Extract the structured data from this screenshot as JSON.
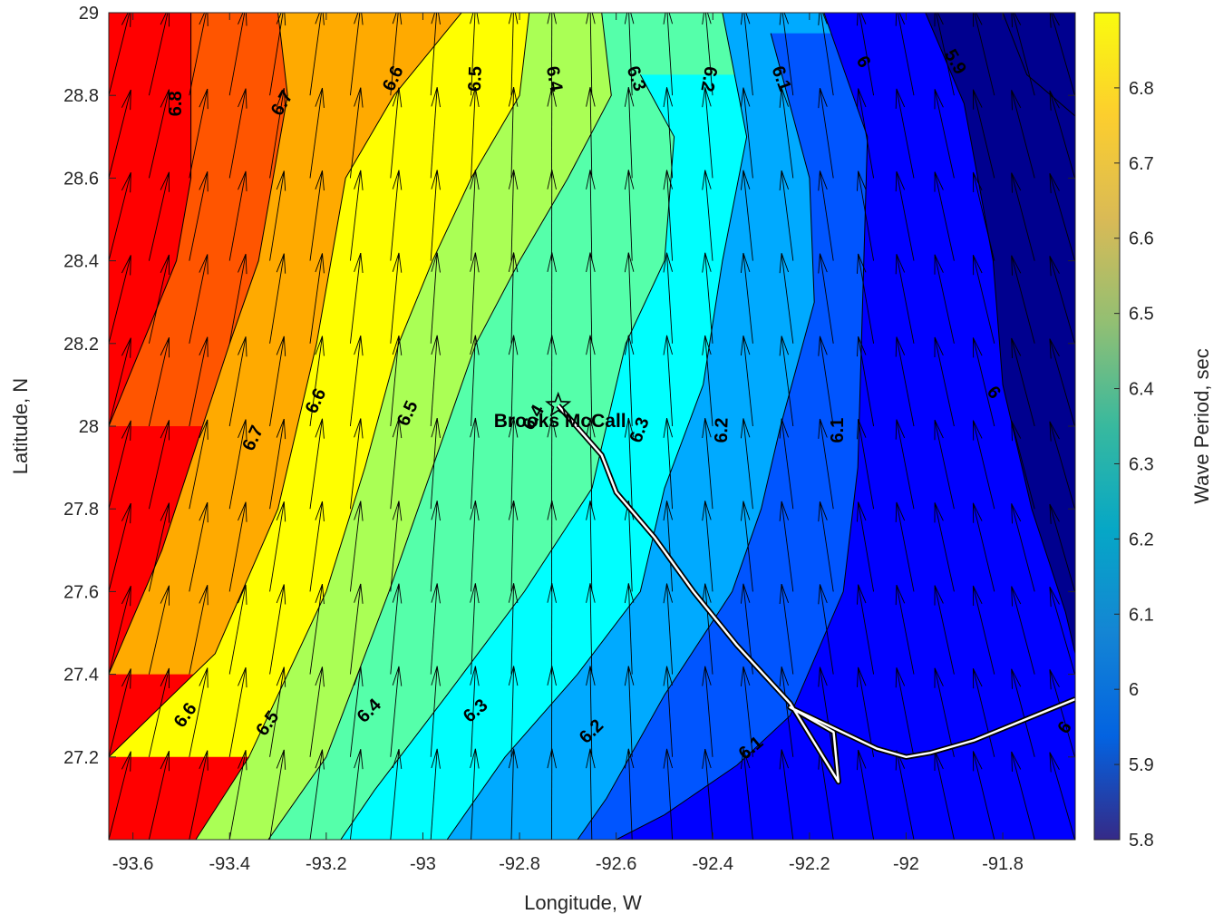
{
  "chart_data": {
    "type": "contour",
    "xlabel": "Longitude, W",
    "ylabel": "Latitude, N",
    "colorbar_label": "Wave Period, sec",
    "xlim": [
      -93.65,
      -91.65
    ],
    "ylim": [
      27.0,
      29.0
    ],
    "x_ticks": [
      -93.6,
      -93.4,
      -93.2,
      -93.0,
      -92.8,
      -92.6,
      -92.4,
      -92.2,
      -92.0,
      -91.8
    ],
    "x_tick_labels": [
      "-93.6",
      "-93.4",
      "-93.2",
      "-93",
      "-92.8",
      "-92.6",
      "-92.4",
      "-92.2",
      "-92",
      "-91.8"
    ],
    "y_ticks": [
      27.2,
      27.4,
      27.6,
      27.8,
      28.0,
      28.2,
      28.4,
      28.6,
      28.8,
      29.0
    ],
    "y_tick_labels": [
      "27.2",
      "27.4",
      "27.6",
      "27.8",
      "28",
      "28.2",
      "28.4",
      "28.6",
      "28.8",
      "29"
    ],
    "colorbar_range": [
      5.8,
      6.9
    ],
    "colorbar_ticks": [
      5.8,
      5.9,
      6.0,
      6.1,
      6.2,
      6.3,
      6.4,
      6.5,
      6.6,
      6.7,
      6.8
    ],
    "colorbar_tick_labels": [
      "5.8",
      "5.9",
      "6",
      "6.1",
      "6.2",
      "6.3",
      "6.4",
      "6.5",
      "6.6",
      "6.7",
      "6.8"
    ],
    "contour_bands": [
      {
        "level_min": 6.8,
        "color": "#ff0000"
      },
      {
        "level_min": 6.7,
        "color": "#ff5500"
      },
      {
        "level_min": 6.6,
        "color": "#ffaa00"
      },
      {
        "level_min": 6.5,
        "color": "#ffff00"
      },
      {
        "level_min": 6.4,
        "color": "#aaff55"
      },
      {
        "level_min": 6.3,
        "color": "#55ffaa"
      },
      {
        "level_min": 6.2,
        "color": "#00ffff"
      },
      {
        "level_min": 6.1,
        "color": "#00aaff"
      },
      {
        "level_min": 6.0,
        "color": "#0055ff"
      },
      {
        "level_min": 5.9,
        "color": "#0000ff"
      },
      {
        "level_min": 5.8,
        "color": "#00008f"
      }
    ],
    "contour_levels": [
      {
        "level": 6.8,
        "line": [
          [
            -93.48,
            29.0
          ],
          [
            -93.48,
            28.6
          ],
          [
            -93.51,
            28.4
          ],
          [
            -93.65,
            28.0
          ]
        ]
      },
      {
        "level": 6.7,
        "line": [
          [
            -93.3,
            29.0
          ],
          [
            -93.28,
            28.8
          ],
          [
            -93.34,
            28.4
          ],
          [
            -93.4,
            28.2
          ],
          [
            -93.54,
            27.7
          ],
          [
            -93.65,
            27.4
          ]
        ]
      },
      {
        "level": 6.6,
        "line": [
          [
            -92.92,
            29.0
          ],
          [
            -93.06,
            28.8
          ],
          [
            -93.16,
            28.6
          ],
          [
            -93.22,
            28.2
          ],
          [
            -93.3,
            27.8
          ],
          [
            -93.43,
            27.45
          ],
          [
            -93.65,
            27.2
          ]
        ]
      },
      {
        "level": 6.5,
        "line": [
          [
            -92.78,
            29.0
          ],
          [
            -92.8,
            28.8
          ],
          [
            -92.9,
            28.6
          ],
          [
            -92.98,
            28.4
          ],
          [
            -93.05,
            28.2
          ],
          [
            -93.12,
            27.9
          ],
          [
            -93.2,
            27.6
          ],
          [
            -93.36,
            27.2
          ],
          [
            -93.47,
            27.0
          ]
        ]
      },
      {
        "level": 6.4,
        "line": [
          [
            -92.63,
            29.0
          ],
          [
            -92.61,
            28.8
          ],
          [
            -92.7,
            28.6
          ],
          [
            -92.8,
            28.4
          ],
          [
            -92.89,
            28.2
          ],
          [
            -92.98,
            27.9
          ],
          [
            -93.07,
            27.6
          ],
          [
            -93.2,
            27.2
          ],
          [
            -93.32,
            27.0
          ]
        ]
      },
      {
        "level": 6.3,
        "line": [
          [
            -92.55,
            28.85
          ],
          [
            -92.48,
            28.7
          ],
          [
            -92.5,
            28.4
          ],
          [
            -92.58,
            28.2
          ],
          [
            -92.65,
            27.85
          ],
          [
            -92.79,
            27.6
          ],
          [
            -92.95,
            27.35
          ],
          [
            -93.1,
            27.12
          ],
          [
            -93.17,
            27.0
          ]
        ]
      },
      {
        "level": 6.2,
        "line": [
          [
            -92.38,
            29.0
          ],
          [
            -92.33,
            28.7
          ],
          [
            -92.38,
            28.4
          ],
          [
            -92.42,
            28.1
          ],
          [
            -92.5,
            27.85
          ],
          [
            -92.55,
            27.6
          ],
          [
            -92.68,
            27.4
          ],
          [
            -92.83,
            27.2
          ],
          [
            -92.95,
            27.0
          ]
        ]
      },
      {
        "level": 6.1,
        "line": [
          [
            -92.28,
            28.95
          ],
          [
            -92.2,
            28.6
          ],
          [
            -92.19,
            28.3
          ],
          [
            -92.26,
            28.0
          ],
          [
            -92.3,
            27.8
          ],
          [
            -92.36,
            27.6
          ],
          [
            -92.5,
            27.35
          ],
          [
            -92.62,
            27.1
          ],
          [
            -92.68,
            27.0
          ]
        ]
      },
      {
        "level": 6.0,
        "line": [
          [
            -92.17,
            29.0
          ],
          [
            -92.08,
            28.7
          ],
          [
            -92.09,
            28.3
          ],
          [
            -92.1,
            27.9
          ],
          [
            -92.13,
            27.6
          ],
          [
            -92.24,
            27.3
          ],
          [
            -92.35,
            27.18
          ],
          [
            -92.5,
            27.06
          ],
          [
            -92.6,
            27.0
          ]
        ]
      },
      {
        "level": 5.9,
        "line": [
          [
            -91.96,
            29.0
          ],
          [
            -91.88,
            28.78
          ],
          [
            -91.82,
            28.4
          ],
          [
            -91.8,
            28.1
          ],
          [
            -91.74,
            27.8
          ],
          [
            -91.67,
            27.55
          ],
          [
            -91.65,
            27.45
          ]
        ]
      },
      {
        "level": 5.8,
        "line": [
          [
            -91.8,
            29.0
          ],
          [
            -91.75,
            28.85
          ],
          [
            -91.65,
            28.75
          ]
        ]
      }
    ],
    "contour_labels": [
      {
        "text": "6.8",
        "lon": -93.51,
        "lat": 28.78,
        "angle": -90
      },
      {
        "text": "6.7",
        "lon": -93.29,
        "lat": 28.78,
        "angle": -60
      },
      {
        "text": "6.6",
        "lon": -93.06,
        "lat": 28.84,
        "angle": -65
      },
      {
        "text": "6.5",
        "lon": -92.89,
        "lat": 28.84,
        "angle": -88
      },
      {
        "text": "6.4",
        "lon": -92.73,
        "lat": 28.84,
        "angle": 80
      },
      {
        "text": "6.3",
        "lon": -92.56,
        "lat": 28.84,
        "angle": 70
      },
      {
        "text": "6.2",
        "lon": -92.41,
        "lat": 28.84,
        "angle": 100
      },
      {
        "text": "6.1",
        "lon": -92.26,
        "lat": 28.84,
        "angle": 70
      },
      {
        "text": "6",
        "lon": -92.09,
        "lat": 28.88,
        "angle": 60
      },
      {
        "text": "5.9",
        "lon": -91.9,
        "lat": 28.88,
        "angle": 60
      },
      {
        "text": "6.7",
        "lon": -93.35,
        "lat": 27.97,
        "angle": -65
      },
      {
        "text": "6.6",
        "lon": -93.22,
        "lat": 28.06,
        "angle": -65
      },
      {
        "text": "6.5",
        "lon": -93.03,
        "lat": 28.03,
        "angle": -65
      },
      {
        "text": "6.4",
        "lon": -92.77,
        "lat": 28.02,
        "angle": -60
      },
      {
        "text": "6.3",
        "lon": -92.55,
        "lat": 27.99,
        "angle": -70
      },
      {
        "text": "6.2",
        "lon": -92.38,
        "lat": 27.99,
        "angle": -88
      },
      {
        "text": "6.1",
        "lon": -92.14,
        "lat": 27.99,
        "angle": -90
      },
      {
        "text": "6",
        "lon": -91.82,
        "lat": 28.08,
        "angle": 50
      },
      {
        "text": "6.6",
        "lon": -93.49,
        "lat": 27.3,
        "angle": -55
      },
      {
        "text": "6.5",
        "lon": -93.32,
        "lat": 27.28,
        "angle": -55
      },
      {
        "text": "6.4",
        "lon": -93.11,
        "lat": 27.31,
        "angle": -45
      },
      {
        "text": "6.3",
        "lon": -92.89,
        "lat": 27.31,
        "angle": -40
      },
      {
        "text": "6.2",
        "lon": -92.65,
        "lat": 27.26,
        "angle": -45
      },
      {
        "text": "6.1",
        "lon": -92.32,
        "lat": 27.22,
        "angle": -40
      },
      {
        "text": "6",
        "lon": -91.67,
        "lat": 27.27,
        "angle": -55
      }
    ],
    "station": {
      "name": "Brooks McCall",
      "lon": -92.72,
      "lat": 28.05
    },
    "track": [
      [
        -92.72,
        28.05
      ],
      [
        -92.63,
        27.93
      ],
      [
        -92.6,
        27.84
      ],
      [
        -92.52,
        27.73
      ],
      [
        -92.44,
        27.6
      ],
      [
        -92.35,
        27.47
      ],
      [
        -92.24,
        27.33
      ],
      [
        -92.14,
        27.14
      ],
      [
        -92.15,
        27.26
      ],
      [
        -92.24,
        27.32
      ],
      [
        -92.06,
        27.22
      ],
      [
        -92.0,
        27.2
      ],
      [
        -91.95,
        27.21
      ],
      [
        -91.89,
        27.23
      ],
      [
        -91.86,
        27.24
      ],
      [
        -91.65,
        27.34
      ]
    ],
    "vector_field": {
      "lon_start": -93.65,
      "lon_step": 0.0833,
      "lat_start": 27.0,
      "lat_step": 0.2,
      "lon_range": [
        -93.65,
        -91.65
      ],
      "lat_range": [
        27.0,
        29.0
      ],
      "length_deg": 0.22,
      "direction_deg_west": 14,
      "direction_deg_east": -16
    }
  }
}
